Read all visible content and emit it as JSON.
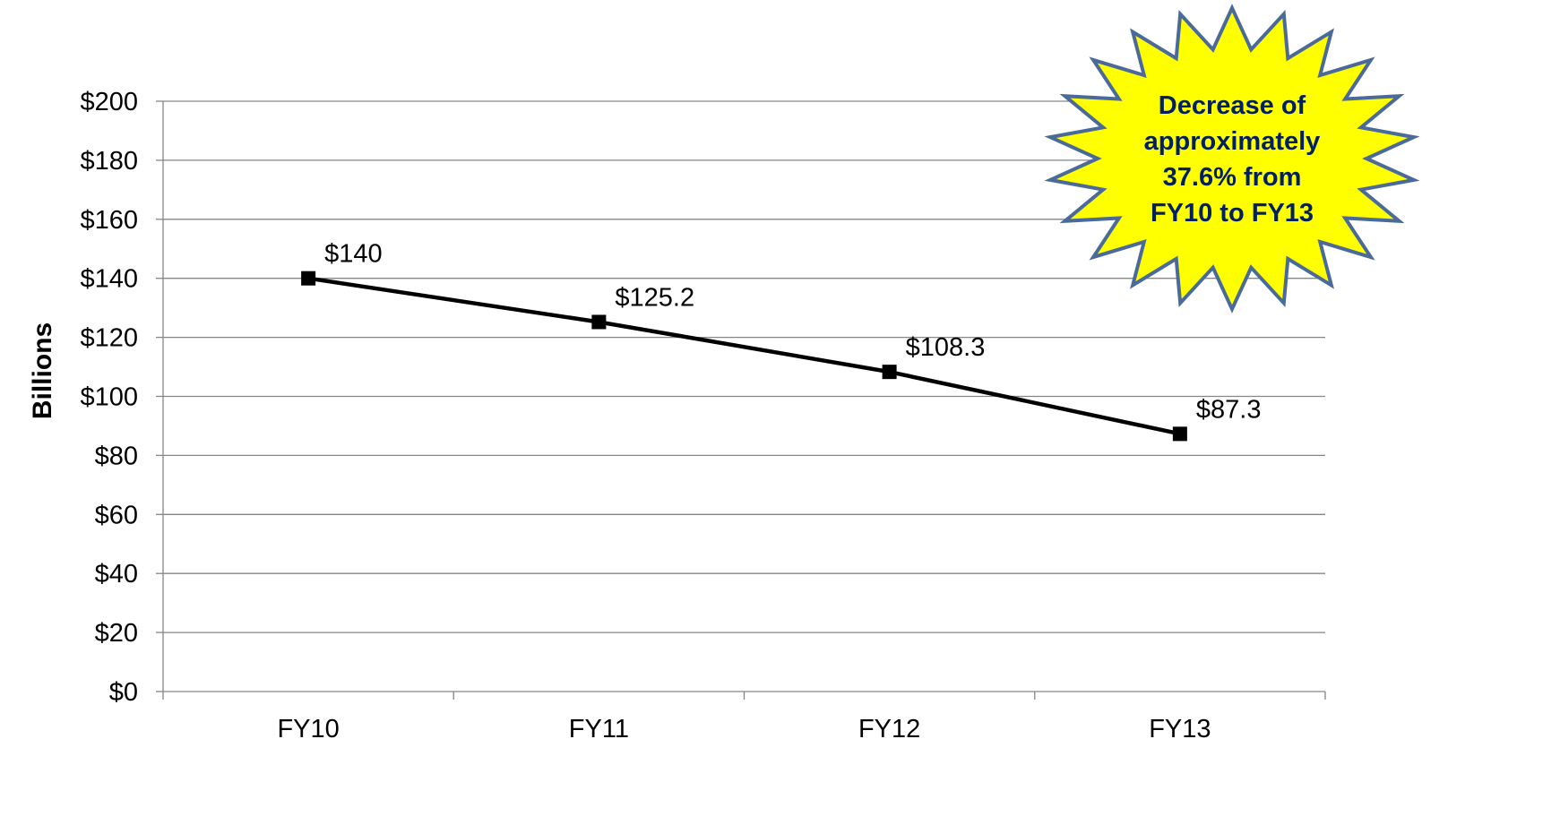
{
  "chart_data": {
    "type": "line",
    "categories": [
      "FY10",
      "FY11",
      "FY12",
      "FY13"
    ],
    "series": [
      {
        "values": [
          140,
          125.2,
          108.3,
          87.3
        ],
        "data_labels": [
          "$140",
          "$125.2",
          "$108.3",
          "$87.3"
        ]
      }
    ],
    "ylabel": "Billions",
    "xlabel": "",
    "ylim": [
      0,
      200
    ],
    "y_ticks": [
      0,
      20,
      40,
      60,
      80,
      100,
      120,
      140,
      160,
      180,
      200
    ],
    "y_tick_labels": [
      "$0",
      "$20",
      "$40",
      "$60",
      "$80",
      "$100",
      "$120",
      "$140",
      "$160",
      "$180",
      "$200"
    ],
    "grid": true,
    "legend": "none",
    "annotation": {
      "lines": [
        "Decrease of",
        "approximately",
        "37.6% from",
        "FY10 to FY13"
      ],
      "placement": "top-right"
    },
    "colors": {
      "line": "#000000",
      "marker": "#000000",
      "gridline": "#868686",
      "burst_fill": "#ffff00",
      "burst_stroke": "#4a6a9a",
      "burst_text": "#002060"
    }
  }
}
